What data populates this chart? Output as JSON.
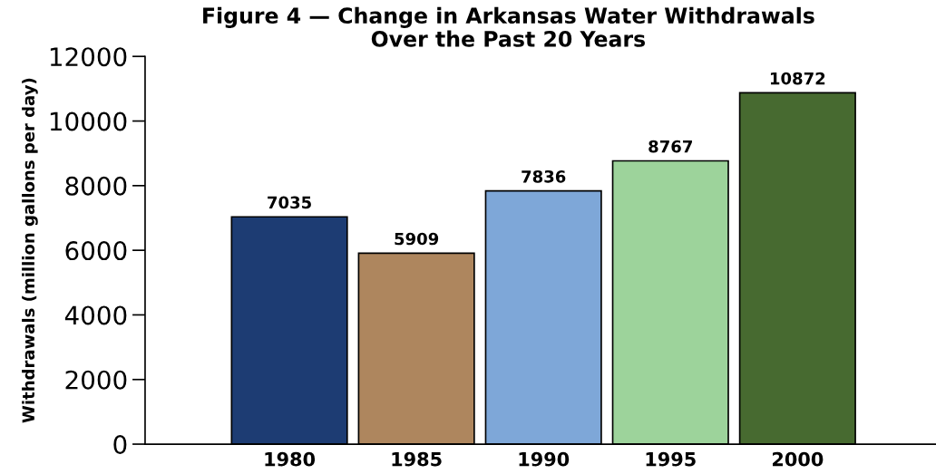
{
  "chart_data": {
    "type": "bar",
    "title": "Figure 4 — Change in Arkansas Water Withdrawals\nOver the Past 20 Years",
    "ylabel": "Withdrawals (million gallons per day)",
    "categories": [
      "1980",
      "1985",
      "1990",
      "1995",
      "2000"
    ],
    "values": [
      7035,
      5909,
      7836,
      8767,
      10872
    ],
    "colors": [
      "#1d3c73",
      "#ae865e",
      "#7ea7d8",
      "#9dd39b",
      "#476a30"
    ],
    "ylim": [
      0,
      12000
    ],
    "yticks": [
      0,
      2000,
      4000,
      6000,
      8000,
      10000,
      12000
    ],
    "grid": false,
    "data_labels": true
  }
}
